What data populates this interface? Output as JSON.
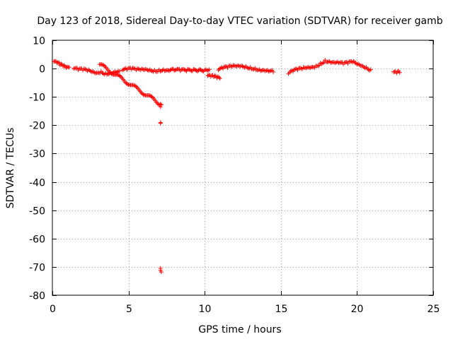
{
  "chart_data": {
    "type": "scatter",
    "title": "Day 123 of 2018, Sidereal Day-to-day VTEC variation (SDTVAR) for receiver gamb",
    "xlabel": "GPS time / hours",
    "ylabel": "SDTVAR / TECUs",
    "xlim": [
      0,
      25
    ],
    "ylim": [
      -80,
      10
    ],
    "xticks": [
      0,
      5,
      10,
      15,
      20,
      25
    ],
    "yticks": [
      10,
      0,
      -10,
      -20,
      -30,
      -40,
      -50,
      -60,
      -70,
      -80
    ],
    "grid": true,
    "marker": "+",
    "color": "#ff0000",
    "series": [
      {
        "name": "SDTVAR",
        "segments": [
          {
            "x": [
              0.1,
              0.3,
              0.5,
              0.7,
              0.9,
              1.1
            ],
            "y": [
              2.5,
              2.0,
              1.2,
              0.8,
              0.3,
              0.5
            ]
          },
          {
            "x": [
              1.4,
              1.7,
              2.0,
              2.3,
              2.6,
              2.9,
              3.2,
              3.5,
              3.8,
              4.1,
              4.4
            ],
            "y": [
              0.0,
              -0.5,
              -0.6,
              -0.8,
              -1.2,
              -1.5,
              -1.0,
              -1.6,
              -1.2,
              -1.0,
              -0.9
            ]
          },
          {
            "x": [
              4.6,
              4.9,
              5.2,
              5.5,
              5.8,
              6.1,
              6.4,
              6.7,
              7.0,
              7.3,
              7.6,
              8.0,
              8.4,
              8.8,
              9.2,
              9.6,
              10.0,
              10.3
            ],
            "y": [
              -0.6,
              -0.4,
              -0.3,
              -0.5,
              -0.4,
              -0.2,
              -0.3,
              -0.5,
              -0.4,
              -0.3,
              -0.6,
              -0.7,
              -0.8,
              -0.9,
              -0.8,
              -0.6,
              -0.4,
              -0.3
            ]
          },
          {
            "x": [
              10.2,
              10.4,
              10.6,
              10.8,
              11.0
            ],
            "y": [
              -2.5,
              -2.8,
              -3.0,
              -3.3,
              -3.5
            ]
          },
          {
            "x": [
              10.9,
              11.2,
              11.5,
              11.8,
              12.1,
              12.4,
              12.7,
              13.0,
              13.3,
              13.6,
              13.9,
              14.2,
              14.5
            ],
            "y": [
              -0.5,
              0.0,
              0.3,
              0.6,
              0.8,
              1.0,
              0.8,
              0.5,
              0.2,
              -0.3,
              -0.6,
              -1.0,
              -1.2
            ]
          },
          {
            "x": [
              15.5,
              15.8,
              16.1,
              16.4,
              16.7,
              17.0,
              17.3,
              17.6,
              17.9,
              18.2,
              18.5,
              18.8,
              19.1,
              19.4,
              19.7,
              20.0,
              20.3,
              20.6,
              20.9
            ],
            "y": [
              -1.8,
              -1.0,
              -0.5,
              -0.2,
              0.2,
              0.5,
              1.0,
              2.0,
              3.0,
              2.6,
              2.2,
              2.0,
              1.6,
              1.8,
              2.2,
              1.5,
              1.0,
              0.5,
              -0.3
            ]
          },
          {
            "x": [
              22.4,
              22.6,
              22.8
            ],
            "y": [
              -1.2,
              -1.6,
              -1.4
            ]
          },
          {
            "x": [
              3.1,
              7.1,
              7.1,
              7.1,
              7.1,
              7.1,
              7.1,
              7.15,
              7.15
            ],
            "y": [
              1.5,
              -12.5,
              -13.5,
              -19.0,
              -19.3,
              -70.5,
              -71.2,
              -71.8,
              -12.8
            ]
          }
        ]
      }
    ]
  }
}
